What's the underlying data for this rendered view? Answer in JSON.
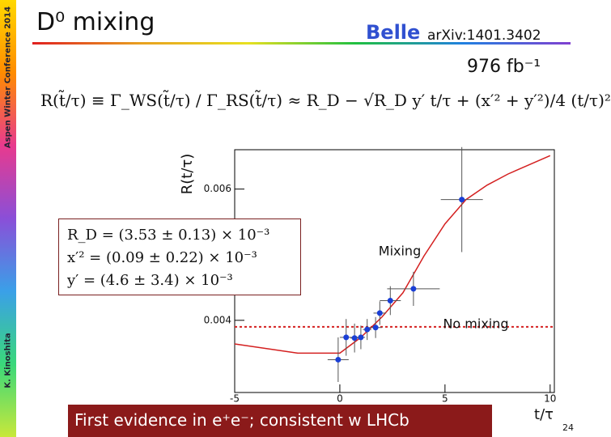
{
  "slide": {
    "title": "D⁰ mixing",
    "experiment": "Belle",
    "reference": "arXiv:1401.3402",
    "luminosity": "976 fb⁻¹",
    "conference": "Aspen Winter Conference 2014",
    "author": "K. Kinoshita",
    "formula": "R(t̃/τ) ≡ Γ_WS(t̃/τ) / Γ_RS(t̃/τ) ≈ R_D − √R_D y′ t/τ + (x′² + y′²)/4 (t/τ)²",
    "results": [
      "R_D = (3.53 ± 0.13) × 10⁻³",
      "x′² = (0.09 ± 0.22) × 10⁻³",
      "y′ = (4.6 ± 3.4) × 10⁻³"
    ],
    "banner": "First evidence in e⁺e⁻; consistent w LHCb",
    "page": "24"
  },
  "chart_data": {
    "type": "scatter",
    "xlabel": "t/τ",
    "ylabel": "R(t/τ)",
    "xlim": [
      -5,
      10.2
    ],
    "ylim": [
      0.0029,
      0.0066
    ],
    "xticks": [
      -5,
      0,
      5,
      10
    ],
    "yticks": [
      0.004,
      0.006
    ],
    "points": {
      "color": "#1a3fd6",
      "x": [
        -0.08,
        0.3,
        0.7,
        1.0,
        1.3,
        1.7,
        1.9,
        2.4,
        3.5,
        5.8
      ],
      "y": [
        0.0034,
        0.00374,
        0.00373,
        0.00374,
        0.00386,
        0.00389,
        0.00411,
        0.0043,
        0.00448,
        0.00584
      ],
      "xerr": [
        0.5,
        0.3,
        0.2,
        0.2,
        0.2,
        0.3,
        0.3,
        0.5,
        1.25,
        1.0
      ],
      "yerr": [
        0.00034,
        0.00028,
        0.00022,
        0.00018,
        0.00016,
        0.00016,
        0.00018,
        0.00022,
        0.00026,
        0.0008
      ]
    },
    "fit": {
      "color": "#d42020",
      "x": [
        -5,
        -2,
        0,
        1,
        2,
        3,
        4,
        5,
        6,
        7,
        8,
        10
      ],
      "y": [
        0.00364,
        0.0035,
        0.0035,
        0.00374,
        0.00405,
        0.00442,
        0.00498,
        0.00547,
        0.00584,
        0.00606,
        0.00623,
        0.00651
      ]
    },
    "no_mixing_level": 0.0039,
    "no_mixing_color": "#d42020",
    "annotations": [
      "Mixing",
      "No mixing"
    ]
  }
}
